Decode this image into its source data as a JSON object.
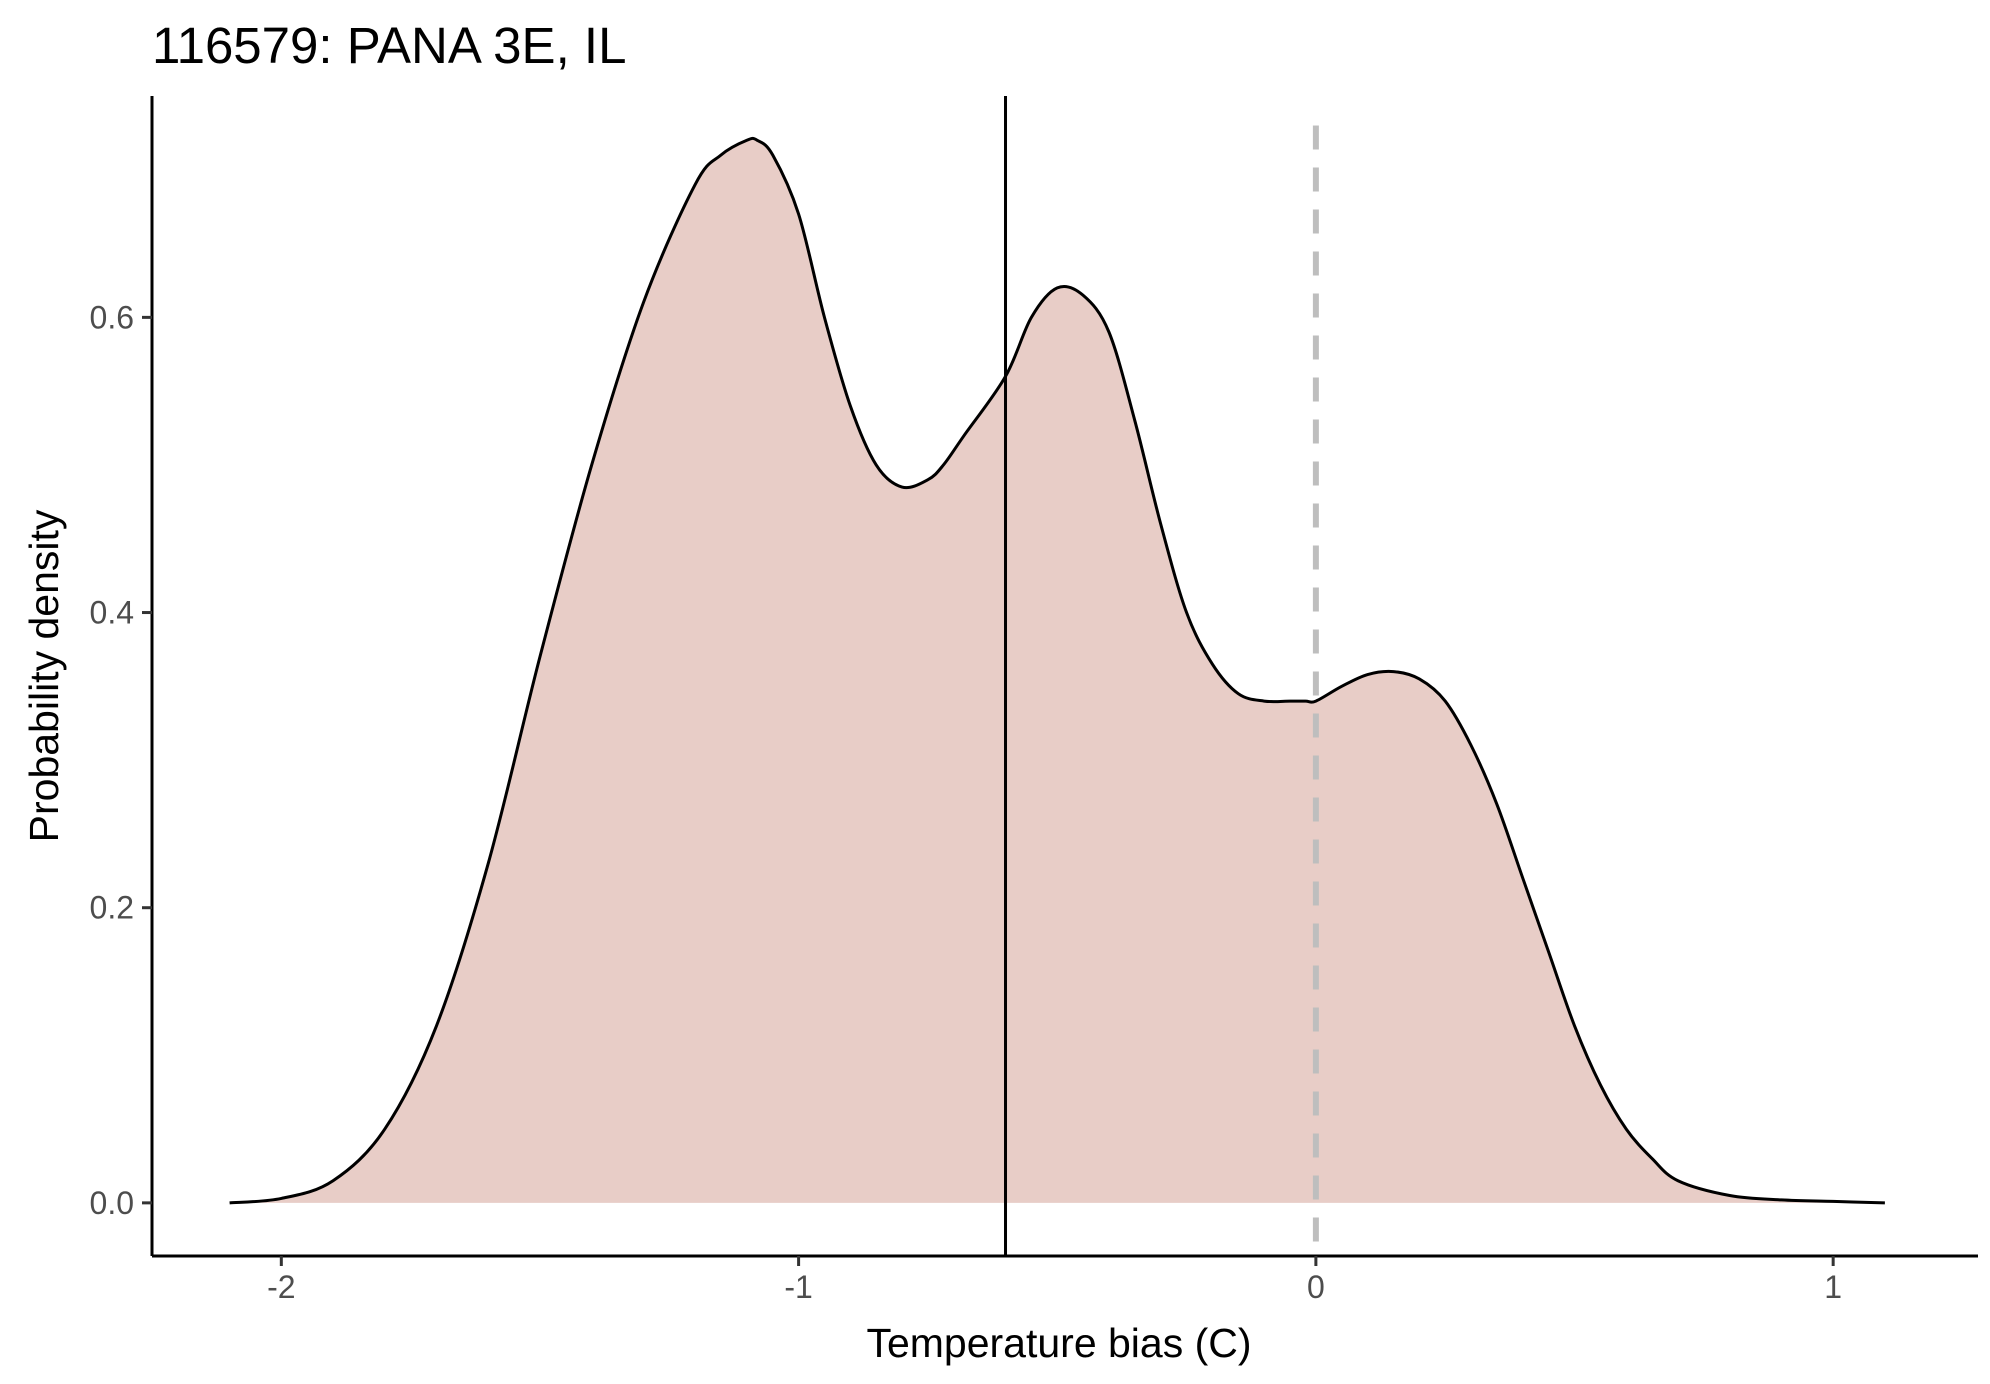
{
  "chart_data": {
    "type": "area",
    "title": "116579: PANA 3E, IL",
    "xlabel": "Temperature bias (C)",
    "ylabel": "Probability density",
    "xlim": [
      -2.25,
      1.28
    ],
    "ylim": [
      -0.036,
      0.75
    ],
    "x_ticks": [
      -2,
      -1,
      0,
      1
    ],
    "x_tick_labels": [
      "-2",
      "-1",
      "0",
      "1"
    ],
    "y_ticks": [
      0.0,
      0.2,
      0.4,
      0.6
    ],
    "y_tick_labels": [
      "0.0",
      "0.2",
      "0.4",
      "0.6"
    ],
    "grid": false,
    "legend": "none",
    "colors": {
      "fill": "#e8cdc7",
      "density_line": "#000000",
      "mean_line": "#000000",
      "zero_line": "#bebebe"
    },
    "reference_lines": [
      {
        "name": "mean",
        "x": -0.6,
        "style": "solid"
      },
      {
        "name": "zero",
        "x": 0.0,
        "style": "dashed"
      }
    ],
    "series": [
      {
        "x": [
          -2.1,
          -2.0,
          -1.9,
          -1.8,
          -1.7,
          -1.6,
          -1.5,
          -1.4,
          -1.3,
          -1.2,
          -1.15,
          -1.1,
          -1.08,
          -1.05,
          -1.0,
          -0.95,
          -0.9,
          -0.85,
          -0.8,
          -0.75,
          -0.72,
          -0.68,
          -0.6,
          -0.55,
          -0.5,
          -0.45,
          -0.4,
          -0.35,
          -0.3,
          -0.25,
          -0.2,
          -0.15,
          -0.1,
          -0.05,
          -0.02,
          0.0,
          0.05,
          0.1,
          0.15,
          0.2,
          0.25,
          0.3,
          0.35,
          0.4,
          0.45,
          0.5,
          0.55,
          0.6,
          0.65,
          0.7,
          0.8,
          0.9,
          1.0,
          1.1
        ],
        "values": [
          0.0,
          0.003,
          0.015,
          0.05,
          0.12,
          0.23,
          0.37,
          0.5,
          0.61,
          0.69,
          0.71,
          0.72,
          0.72,
          0.71,
          0.67,
          0.6,
          0.54,
          0.5,
          0.485,
          0.49,
          0.5,
          0.52,
          0.56,
          0.6,
          0.62,
          0.615,
          0.59,
          0.53,
          0.46,
          0.4,
          0.365,
          0.345,
          0.34,
          0.34,
          0.34,
          0.34,
          0.35,
          0.358,
          0.36,
          0.355,
          0.34,
          0.31,
          0.27,
          0.22,
          0.17,
          0.12,
          0.08,
          0.05,
          0.03,
          0.015,
          0.005,
          0.002,
          0.001,
          0.0
        ]
      }
    ]
  }
}
